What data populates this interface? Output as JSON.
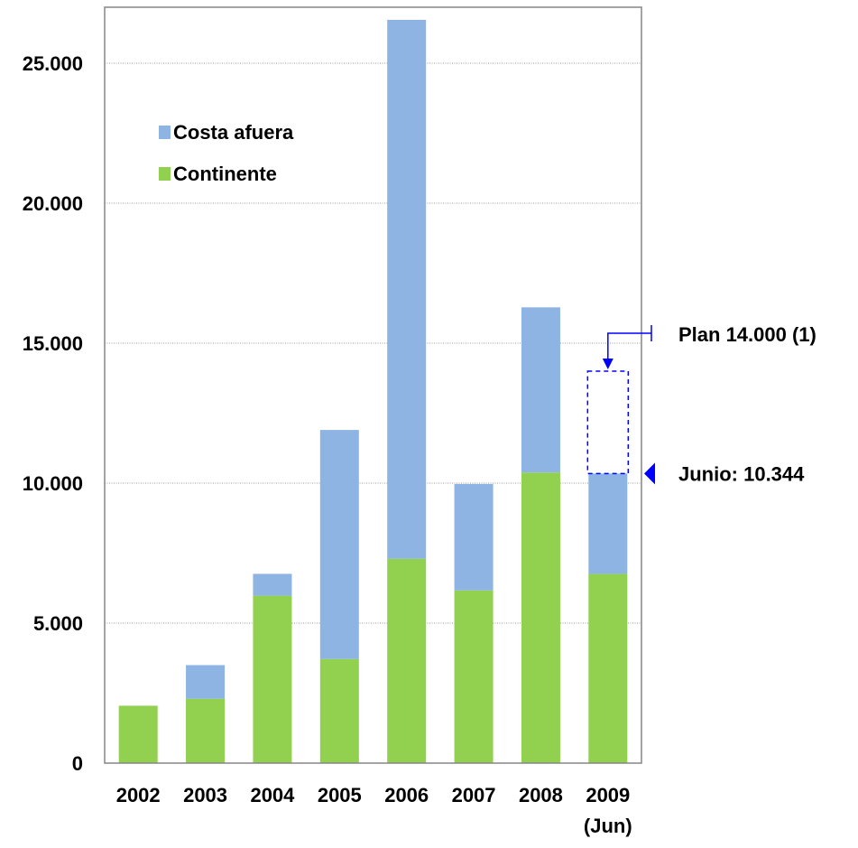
{
  "chart_data": {
    "type": "bar",
    "stacked": true,
    "categories": [
      "2002",
      "2003",
      "2004",
      "2005",
      "2006",
      "2007",
      "2008",
      "2009"
    ],
    "category_sublabels": [
      "",
      "",
      "",
      "",
      "",
      "",
      "",
      "(Jun)"
    ],
    "series": [
      {
        "name": "Continente",
        "color": "#92d050",
        "values": [
          2050,
          2300,
          5980,
          3720,
          7300,
          6170,
          10380,
          6760
        ]
      },
      {
        "name": "Costa afuera",
        "color": "#8db4e2",
        "values": [
          0,
          1200,
          780,
          8180,
          19250,
          3800,
          5900,
          3584
        ]
      }
    ],
    "ylim": [
      0,
      27000
    ],
    "y_ticks": [
      0,
      5000,
      10000,
      15000,
      20000,
      25000
    ],
    "y_tick_labels": [
      "0",
      "5.000",
      "10.000",
      "15.000",
      "20.000",
      "25.000"
    ],
    "grid": true,
    "legend_position": "top-left",
    "legend_order": [
      "Costa afuera",
      "Continente"
    ],
    "annotations": [
      {
        "id": "plan",
        "text": "Plan 14.000 (1)",
        "category": "2009",
        "value": 14000,
        "from_value": 10344,
        "color": "#0000ff"
      },
      {
        "id": "junio",
        "text": "Junio: 10.344",
        "category": "2009",
        "value": 10344,
        "color": "#0000ff"
      }
    ],
    "title": "",
    "xlabel": "",
    "ylabel": ""
  }
}
